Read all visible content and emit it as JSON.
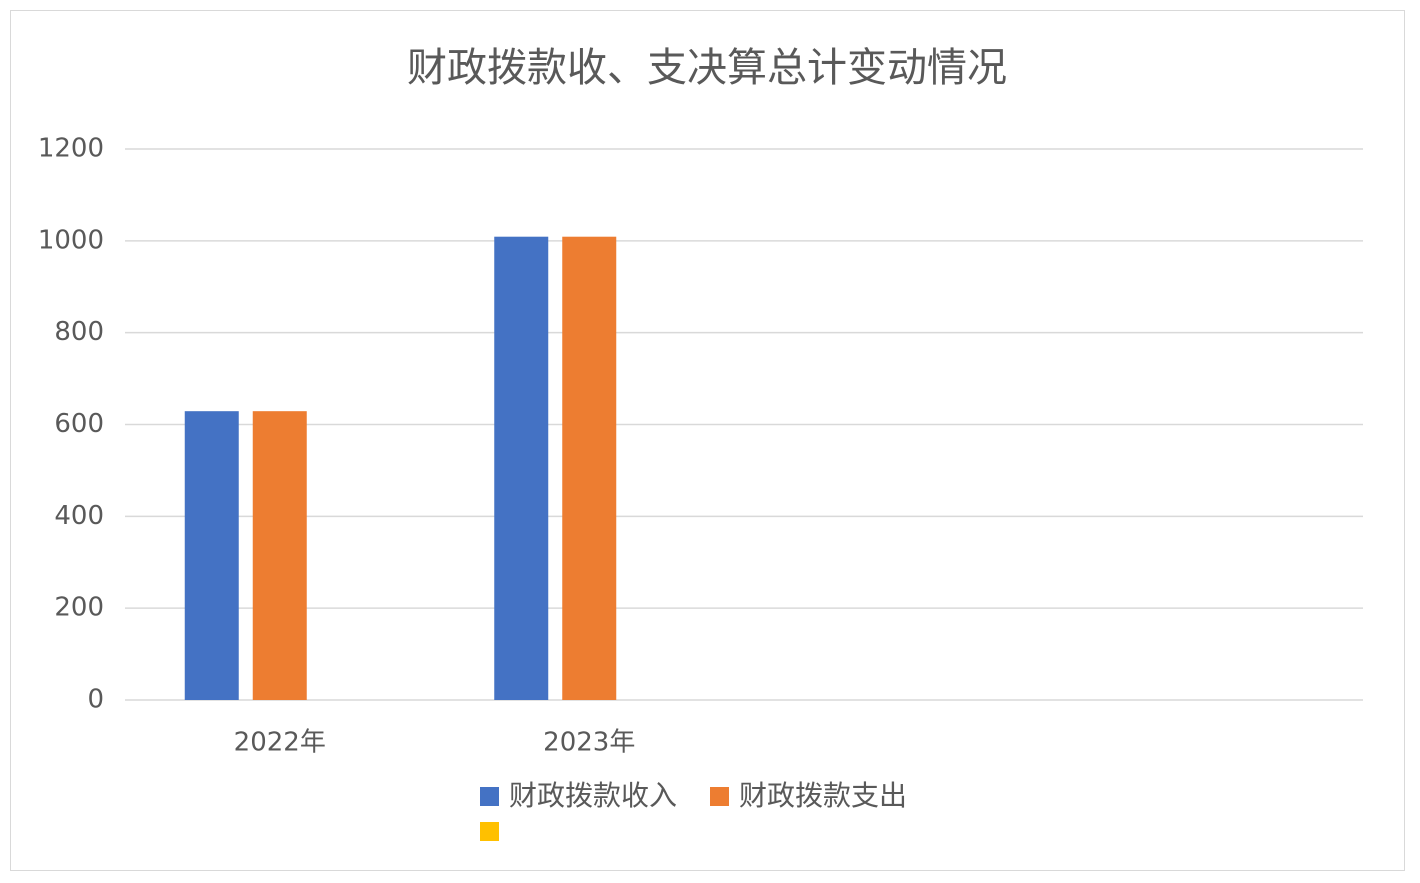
{
  "chart_data": {
    "type": "bar",
    "title": "财政拨款收、支决算总计变动情况",
    "categories": [
      "2022年",
      "2023年",
      null,
      null
    ],
    "series": [
      {
        "name": "财政拨款收入",
        "color": "#4472c4",
        "values": [
          629,
          1009,
          null,
          null
        ]
      },
      {
        "name": "财政拨款支出",
        "color": "#ed7d31",
        "values": [
          629,
          1009,
          null,
          null
        ]
      },
      {
        "name": null,
        "color": "#ffc000",
        "values": [
          null,
          null,
          null,
          null
        ]
      }
    ],
    "ylim": [
      0,
      1200
    ],
    "yticks": [
      0,
      200,
      400,
      600,
      800,
      1000,
      1200
    ],
    "grid": true
  }
}
